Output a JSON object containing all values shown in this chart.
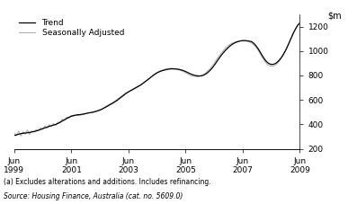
{
  "legend": [
    "Trend",
    "Seasonally Adjusted"
  ],
  "legend_colors": [
    "#000000",
    "#aaaaaa"
  ],
  "x_tick_labels": [
    "Jun\n1999",
    "Jun\n2001",
    "Jun\n2003",
    "Jun\n2005",
    "Jun\n2007",
    "Jun\n2009"
  ],
  "x_tick_positions": [
    0,
    24,
    48,
    72,
    96,
    120
  ],
  "ylim": [
    200,
    1300
  ],
  "yticks": [
    200,
    400,
    600,
    800,
    1000,
    1200
  ],
  "footnote1": "(a) Excludes alterations and additions. Includes refinancing.",
  "footnote2": "Source: Housing Finance, Australia (cat. no. 5609.0)",
  "trend_data": [
    310,
    315,
    320,
    325,
    328,
    330,
    332,
    335,
    338,
    342,
    346,
    352,
    358,
    365,
    372,
    378,
    384,
    390,
    395,
    400,
    408,
    418,
    428,
    438,
    448,
    458,
    466,
    472,
    476,
    479,
    480,
    483,
    486,
    490,
    494,
    497,
    500,
    505,
    510,
    516,
    523,
    532,
    542,
    552,
    562,
    572,
    583,
    595,
    608,
    622,
    636,
    650,
    662,
    672,
    682,
    692,
    702,
    712,
    722,
    735,
    748,
    762,
    776,
    790,
    804,
    816,
    826,
    834,
    840,
    845,
    849,
    852,
    854,
    854,
    853,
    851,
    848,
    843,
    837,
    829,
    820,
    812,
    805,
    800,
    797,
    796,
    798,
    804,
    814,
    828,
    845,
    866,
    890,
    916,
    942,
    966,
    988,
    1008,
    1026,
    1042,
    1055,
    1065,
    1073,
    1079,
    1083,
    1085,
    1085,
    1083,
    1080,
    1075,
    1060,
    1040,
    1015,
    985,
    955,
    928,
    908,
    895,
    890,
    892,
    900,
    915,
    935,
    960,
    990,
    1025,
    1065,
    1105,
    1145,
    1180,
    1210,
    1230
  ],
  "seasonal_data": [
    330,
    310,
    345,
    305,
    340,
    320,
    355,
    318,
    348,
    338,
    358,
    348,
    372,
    360,
    388,
    370,
    398,
    382,
    408,
    392,
    420,
    410,
    445,
    432,
    460,
    450,
    472,
    465,
    475,
    472,
    476,
    478,
    482,
    488,
    492,
    495,
    498,
    502,
    508,
    516,
    525,
    536,
    548,
    558,
    568,
    578,
    590,
    602,
    615,
    628,
    642,
    655,
    665,
    675,
    685,
    695,
    705,
    715,
    725,
    738,
    752,
    765,
    778,
    792,
    808,
    820,
    830,
    838,
    844,
    850,
    855,
    858,
    860,
    858,
    855,
    850,
    844,
    836,
    828,
    818,
    808,
    800,
    795,
    792,
    790,
    793,
    800,
    810,
    825,
    842,
    860,
    882,
    908,
    936,
    962,
    985,
    1006,
    1025,
    1042,
    1055,
    1065,
    1072,
    1078,
    1082,
    1084,
    1084,
    1082,
    1078,
    1072,
    1063,
    1048,
    1028,
    1002,
    970,
    940,
    912,
    892,
    880,
    875,
    878,
    888,
    905,
    928,
    955,
    988,
    1025,
    1068,
    1108,
    1150,
    1182,
    1212,
    1232
  ]
}
